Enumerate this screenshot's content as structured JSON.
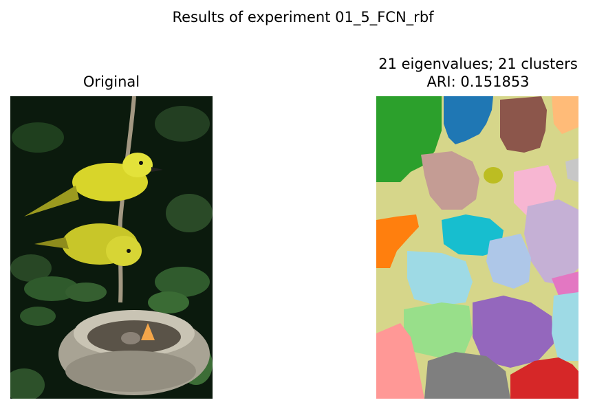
{
  "figure": {
    "suptitle": "Results of experiment 01_5_FCN_rbf"
  },
  "left_panel": {
    "title": "Original",
    "image_description_icon": "bird-photo-icon"
  },
  "right_panel": {
    "title_line1": "21 eigenvalues; 21 clusters",
    "title_line2": "ARI: 0.151853",
    "image_description_icon": "segmentation-map-icon"
  },
  "colors": {
    "background_cluster": "#d6d68a",
    "cluster_green": "#2ca02c",
    "cluster_blue": "#1f77b4",
    "cluster_brown": "#8c564b",
    "cluster_peach": "#ffbb78",
    "cluster_rose": "#c49c94",
    "cluster_olive": "#bcbd22",
    "cluster_pink": "#f7b6d2",
    "cluster_gray_light": "#c7c7c7",
    "cluster_orange": "#ff7f0e",
    "cluster_cyan": "#17becf",
    "cluster_lavender": "#c5b0d5",
    "cluster_lightblue": "#aec7e8",
    "cluster_skyblue": "#9edae5",
    "cluster_magenta": "#e377c2",
    "cluster_lightgreen": "#98df8a",
    "cluster_purple": "#9467bd",
    "cluster_salmon": "#ff9896",
    "cluster_gray": "#7f7f7f",
    "cluster_red": "#d62728"
  }
}
